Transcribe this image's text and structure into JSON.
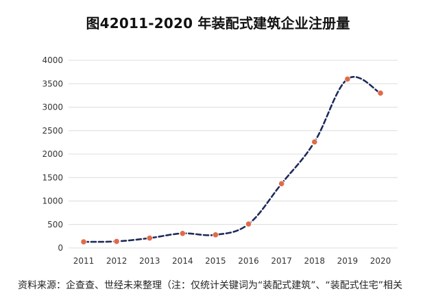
{
  "title": "图42011-2020 年装配式建筑企业注册量",
  "source_note": "资料来源：企查查、世经未来整理（注：仅统计关键词为“装配式建筑”、“装配式住宅”相关",
  "colors": {
    "line": "#1f2a5a",
    "marker": "#e06a4a",
    "grid": "#dcdcdc"
  },
  "chart_data": {
    "type": "line",
    "title": "图42011-2020 年装配式建筑企业注册量",
    "xlabel": "",
    "ylabel": "",
    "x": [
      "2011",
      "2012",
      "2013",
      "2014",
      "2015",
      "2016",
      "2017",
      "2018",
      "2019",
      "2020"
    ],
    "series": [
      {
        "values": [
          130,
          140,
          210,
          310,
          280,
          510,
          1370,
          2260,
          3600,
          3300
        ]
      }
    ],
    "ylim": [
      0,
      4000
    ],
    "yticks": [
      0,
      500,
      1000,
      1500,
      2000,
      2500,
      3000,
      3500,
      4000
    ],
    "grid": true,
    "line_style": "dashed",
    "smooth": true,
    "legend": "none"
  }
}
